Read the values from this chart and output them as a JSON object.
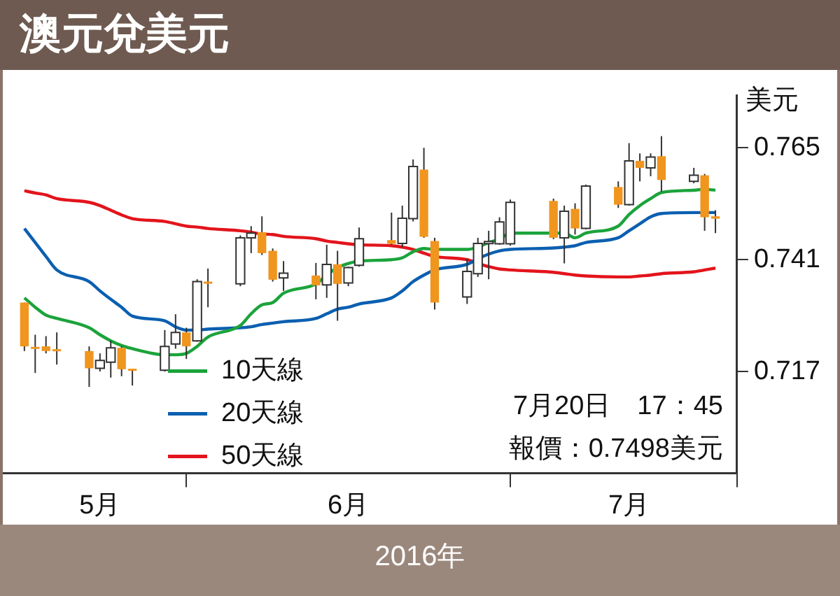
{
  "chart_data": {
    "type": "candlestick",
    "title": "澳元兌美元",
    "xlabel": "2016年",
    "ylabel": "美元",
    "x": [
      "2016-05-17",
      "2016-05-18",
      "2016-05-19",
      "2016-05-20",
      "2016-05-23",
      "2016-05-24",
      "2016-05-25",
      "2016-05-26",
      "2016-05-27",
      "2016-05-30",
      "2016-05-31",
      "2016-06-01",
      "2016-06-02",
      "2016-06-03",
      "2016-06-06",
      "2016-06-07",
      "2016-06-08",
      "2016-06-09",
      "2016-06-10",
      "2016-06-13",
      "2016-06-14",
      "2016-06-15",
      "2016-06-16",
      "2016-06-17",
      "2016-06-20",
      "2016-06-21",
      "2016-06-22",
      "2016-06-23",
      "2016-06-24",
      "2016-06-27",
      "2016-06-28",
      "2016-06-29",
      "2016-06-30",
      "2016-07-01",
      "2016-07-05",
      "2016-07-06",
      "2016-07-07",
      "2016-07-08",
      "2016-07-11",
      "2016-07-12",
      "2016-07-13",
      "2016-07-14",
      "2016-07-15",
      "2016-07-18",
      "2016-07-19",
      "2016-07-20"
    ],
    "ohlc": [
      [
        0.7318,
        0.7318,
        0.7214,
        0.7224
      ],
      [
        0.7223,
        0.7249,
        0.7167,
        0.7221
      ],
      [
        0.7224,
        0.7246,
        0.7209,
        0.7214
      ],
      [
        0.7218,
        0.7254,
        0.7185,
        0.7217
      ],
      [
        0.7214,
        0.7224,
        0.7137,
        0.7177
      ],
      [
        0.7177,
        0.7209,
        0.717,
        0.7194
      ],
      [
        0.719,
        0.7236,
        0.7157,
        0.7221
      ],
      [
        0.7221,
        0.7224,
        0.716,
        0.7175
      ],
      [
        0.7176,
        0.7176,
        0.714,
        0.7175
      ],
      [
        0.7173,
        0.7259,
        0.717,
        0.7224
      ],
      [
        0.7229,
        0.7293,
        0.7219,
        0.7254
      ],
      [
        0.7254,
        0.7264,
        0.7197,
        0.7224
      ],
      [
        0.7236,
        0.7368,
        0.7234,
        0.7363
      ],
      [
        0.7363,
        0.7391,
        0.7308,
        0.7362
      ],
      [
        0.7358,
        0.7462,
        0.7353,
        0.7457
      ],
      [
        0.7457,
        0.7482,
        0.7424,
        0.7467
      ],
      [
        0.7469,
        0.7503,
        0.742,
        0.7424
      ],
      [
        0.7429,
        0.7434,
        0.7363,
        0.7367
      ],
      [
        0.7371,
        0.7407,
        0.7343,
        0.7381
      ],
      [
        0.7376,
        0.7403,
        0.7325,
        0.7355
      ],
      [
        0.7356,
        0.7442,
        0.7328,
        0.74
      ],
      [
        0.74,
        0.7429,
        0.7279,
        0.7358
      ],
      [
        0.736,
        0.7395,
        0.7353,
        0.7393
      ],
      [
        0.7398,
        0.7479,
        0.7395,
        0.7455
      ],
      [
        0.7452,
        0.7511,
        0.7442,
        0.7444
      ],
      [
        0.7445,
        0.7526,
        0.7437,
        0.7499
      ],
      [
        0.7498,
        0.7625,
        0.7492,
        0.761
      ],
      [
        0.7603,
        0.765,
        0.7457,
        0.7459
      ],
      [
        0.745,
        0.7457,
        0.7303,
        0.7318
      ],
      [
        0.733,
        0.7412,
        0.7315,
        0.7385
      ],
      [
        0.738,
        0.7457,
        0.7373,
        0.7445
      ],
      [
        0.7445,
        0.7472,
        0.7368,
        0.7449
      ],
      [
        0.7444,
        0.7501,
        0.7442,
        0.7491
      ],
      [
        0.7444,
        0.7539,
        0.744,
        0.7533
      ],
      [
        0.7536,
        0.7541,
        0.7454,
        0.7457
      ],
      [
        0.7457,
        0.7526,
        0.7402,
        0.7514
      ],
      [
        0.7519,
        0.7531,
        0.7464,
        0.7477
      ],
      [
        0.7477,
        0.7571,
        0.7475,
        0.7568
      ],
      [
        0.7566,
        0.7578,
        0.7521,
        0.7528
      ],
      [
        0.7528,
        0.766,
        0.7526,
        0.7622
      ],
      [
        0.7622,
        0.7638,
        0.7578,
        0.7607
      ],
      [
        0.7607,
        0.7638,
        0.7589,
        0.763
      ],
      [
        0.7632,
        0.7675,
        0.7556,
        0.7581
      ],
      [
        0.7578,
        0.7607,
        0.7574,
        0.7591
      ],
      [
        0.7591,
        0.7594,
        0.7472,
        0.7501
      ],
      [
        0.7503,
        0.7516,
        0.7467,
        0.7498
      ]
    ],
    "series": [
      {
        "name": "10天線",
        "type": "line",
        "color": "#1ba33b",
        "values": [
          0.7328,
          0.7308,
          0.7291,
          0.7284,
          0.7264,
          0.7249,
          0.7236,
          0.7226,
          0.7219,
          0.7206,
          0.7206,
          0.7209,
          0.7224,
          0.7244,
          0.7269,
          0.7294,
          0.7313,
          0.7318,
          0.7338,
          0.7358,
          0.7377,
          0.7393,
          0.7402,
          0.7407,
          0.741,
          0.7414,
          0.7427,
          0.7434,
          0.7432,
          0.7432,
          0.7437,
          0.7447,
          0.7454,
          0.7467,
          0.7467,
          0.7467,
          0.7457,
          0.7467,
          0.7482,
          0.7507,
          0.7526,
          0.7541,
          0.7554,
          0.7559,
          0.7561,
          0.7559
        ]
      },
      {
        "name": "20天線",
        "type": "line",
        "color": "#0b5fb0",
        "values": [
          0.7477,
          0.7447,
          0.7417,
          0.7388,
          0.7363,
          0.7343,
          0.7325,
          0.7308,
          0.7289,
          0.7279,
          0.7266,
          0.7259,
          0.7259,
          0.7261,
          0.7264,
          0.7266,
          0.7271,
          0.7274,
          0.7277,
          0.7284,
          0.7294,
          0.7304,
          0.7308,
          0.7315,
          0.7328,
          0.7343,
          0.7363,
          0.7377,
          0.7388,
          0.74,
          0.7412,
          0.7422,
          0.7429,
          0.7432,
          0.7435,
          0.7437,
          0.744,
          0.7447,
          0.7457,
          0.7472,
          0.7487,
          0.7502,
          0.7509,
          0.7511,
          0.7511,
          0.7511
        ]
      },
      {
        "name": "50天線",
        "type": "line",
        "color": "#e3141b",
        "values": [
          0.7558,
          0.7553,
          0.7549,
          0.7541,
          0.7533,
          0.7526,
          0.7516,
          0.7506,
          0.7498,
          0.7492,
          0.7487,
          0.7482,
          0.748,
          0.7477,
          0.7472,
          0.7469,
          0.7465,
          0.7464,
          0.746,
          0.7455,
          0.745,
          0.7447,
          0.7444,
          0.7442,
          0.744,
          0.7437,
          0.7432,
          0.7424,
          0.7417,
          0.741,
          0.7402,
          0.7395,
          0.739,
          0.7388,
          0.7383,
          0.738,
          0.7377,
          0.7375,
          0.7373,
          0.7373,
          0.7375,
          0.7377,
          0.738,
          0.7384,
          0.7388,
          0.7392
        ]
      }
    ],
    "xlim": [
      "2016-05-15",
      "2016-07-22"
    ],
    "xticks": [
      {
        "value": "2016-05-24",
        "label": "5月"
      },
      {
        "value": "2016-06-01",
        "label": null
      },
      {
        "value": "2016-06-16",
        "label": "6月"
      },
      {
        "value": "2016-07-01",
        "label": null
      },
      {
        "value": "2016-07-12",
        "label": "7月"
      },
      {
        "value": "2016-07-22",
        "label": null
      }
    ],
    "ylim": [
      0.6952,
      0.7763
    ],
    "yticks": [
      0.717,
      0.741,
      0.765
    ],
    "marker": "none",
    "legend": "bottom left",
    "annotations": [
      "7月20日　17：45",
      "報價：0.7498美元"
    ]
  }
}
